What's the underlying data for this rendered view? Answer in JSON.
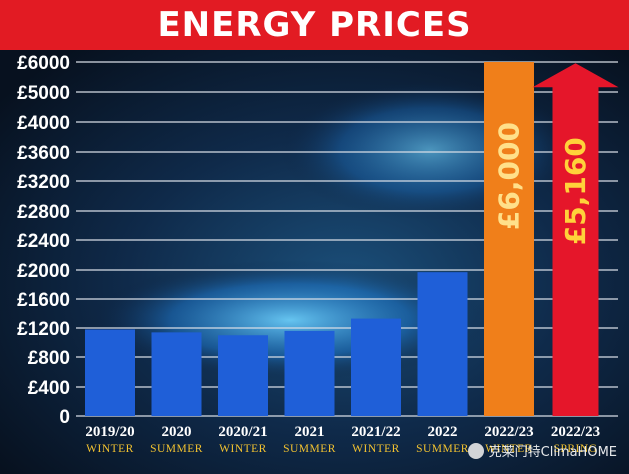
{
  "title": "ENERGY PRICES",
  "watermark": "克莱门特ClimaHOME",
  "colors": {
    "background": "#0b1a33",
    "banner": "#e21b23",
    "bar_blue": "#1f5fd8",
    "bar_orange": "#f07f1a",
    "arrow_red": "#e5162a",
    "gridline": "#d8dde6",
    "season_label": "#f2c230",
    "year_label": "#ffffff"
  },
  "chart_data": {
    "type": "bar",
    "title": "ENERGY PRICES",
    "xlabel": "",
    "ylabel": "",
    "ylim": [
      0,
      6000
    ],
    "yticks": [
      0,
      400,
      800,
      1200,
      1600,
      2000,
      2400,
      2800,
      3200,
      3600,
      4000,
      5000,
      6000
    ],
    "ytick_labels": [
      "0",
      "£400",
      "£800",
      "£1200",
      "£1600",
      "£2000",
      "£2400",
      "£2800",
      "£3200",
      "£3600",
      "£4000",
      "£5000",
      "£6000"
    ],
    "grid": true,
    "categories": [
      {
        "year": "2019/20",
        "season": "WINTER"
      },
      {
        "year": "2020",
        "season": "SUMMER"
      },
      {
        "year": "2020/21",
        "season": "WINTER"
      },
      {
        "year": "2021",
        "season": "SUMMER"
      },
      {
        "year": "2021/22",
        "season": "WINTER"
      },
      {
        "year": "2022",
        "season": "SUMMER"
      },
      {
        "year": "2022/23",
        "season": "WINTER"
      },
      {
        "year": "2022/23",
        "season": "SPRING"
      }
    ],
    "values": [
      1180,
      1140,
      1100,
      1160,
      1330,
      1970,
      6000,
      5160
    ],
    "data_labels": [
      "",
      "",
      "",
      "",
      "",
      "",
      "£6,000",
      "£5,160"
    ],
    "mark_styles": [
      "blue",
      "blue",
      "blue",
      "blue",
      "blue",
      "blue",
      "orange",
      "red-arrow"
    ]
  }
}
